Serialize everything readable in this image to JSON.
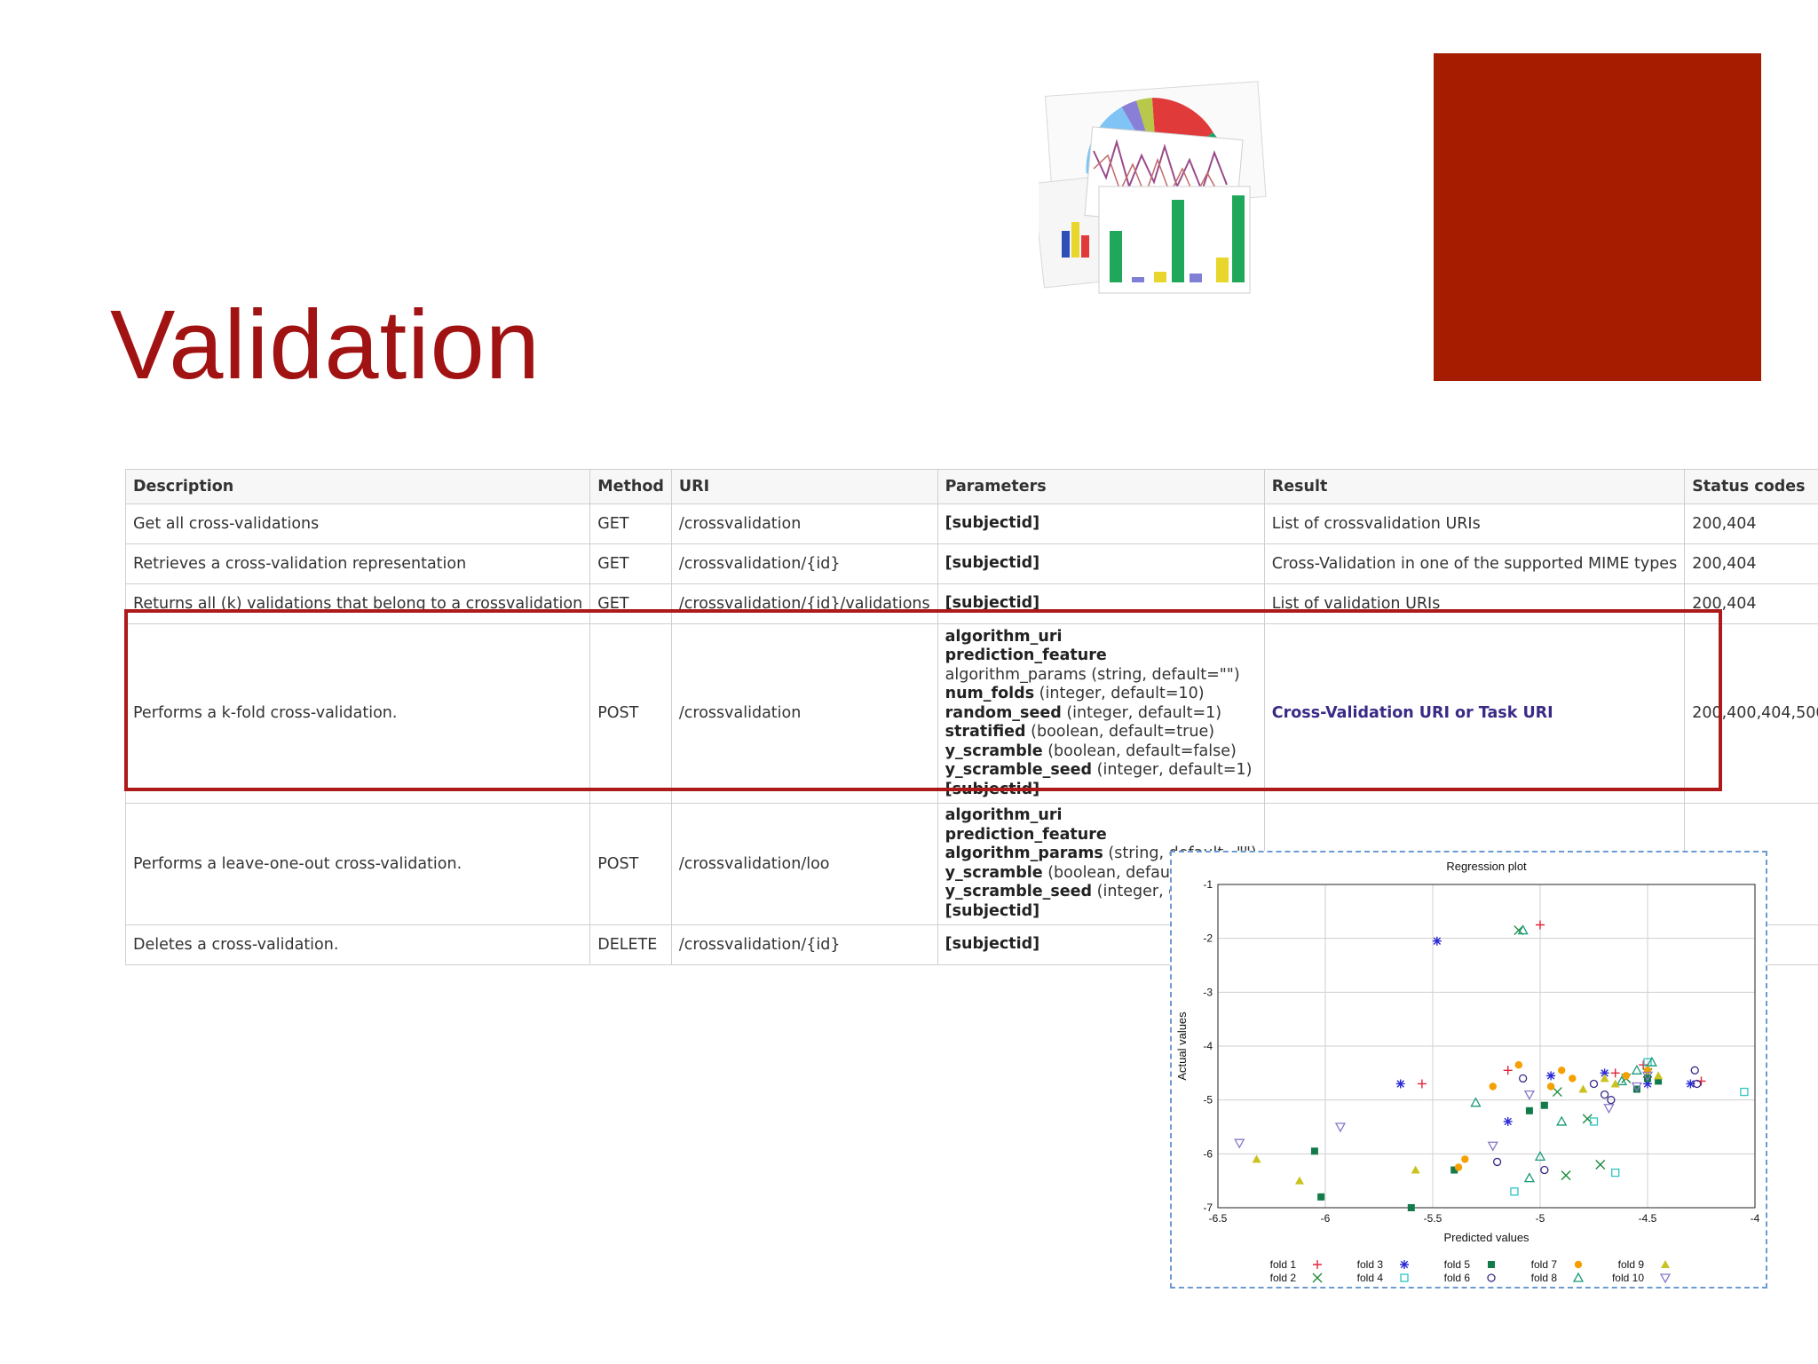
{
  "slide": {
    "title": "Validation",
    "accent_color": "#a61c00",
    "title_color": "#a11313",
    "clipart_icon": "charts-clipart-icon"
  },
  "table": {
    "headers": [
      "Description",
      "Method",
      "URI",
      "Parameters",
      "Result",
      "Status codes"
    ],
    "rows": [
      {
        "description": "Get all cross-validations",
        "method": "GET",
        "uri": "/crossvalidation",
        "params": [
          {
            "name": "[subjectid]",
            "rest": ""
          }
        ],
        "result": "List of crossvalidation URIs",
        "status": "200,404"
      },
      {
        "description": "Retrieves a cross-validation representation",
        "method": "GET",
        "uri": "/crossvalidation/{id}",
        "params": [
          {
            "name": "[subjectid]",
            "rest": ""
          }
        ],
        "result": "Cross-Validation in one of the supported MIME types",
        "status": "200,404"
      },
      {
        "description": "Returns all (k) validations that belong to a crossvalidation",
        "method": "GET",
        "uri": "/crossvalidation/{id}/validations",
        "params": [
          {
            "name": "[subjectid]",
            "rest": ""
          }
        ],
        "result": "List of validation URIs",
        "status": "200,404"
      },
      {
        "description": "Performs a k-fold cross-validation.",
        "method": "POST",
        "uri": "/crossvalidation",
        "params": [
          {
            "name": "algorithm_uri",
            "rest": ""
          },
          {
            "name": "prediction_feature",
            "rest": ""
          },
          {
            "name": "",
            "rest": "algorithm_params (string, default=\"\")"
          },
          {
            "name": "num_folds",
            "rest": " (integer, default=10)"
          },
          {
            "name": "random_seed",
            "rest": " (integer, default=1)"
          },
          {
            "name": "stratified",
            "rest": " (boolean, default=true)"
          },
          {
            "name": "y_scramble",
            "rest": " (boolean, default=false)"
          },
          {
            "name": "y_scramble_seed",
            "rest": " (integer, default=1)"
          },
          {
            "name": "[subjectid]",
            "rest": ""
          }
        ],
        "result": "Cross-Validation URI or Task URI",
        "status": "200,400,404,500"
      },
      {
        "description": "Performs a leave-one-out cross-validation.",
        "method": "POST",
        "uri": "/crossvalidation/loo",
        "params": [
          {
            "name": "algorithm_uri",
            "rest": ""
          },
          {
            "name": "prediction_feature",
            "rest": ""
          },
          {
            "name": "algorithm_params",
            "rest": " (string, default=\"\")"
          },
          {
            "name": "y_scramble",
            "rest": " (boolean, default=false)"
          },
          {
            "name": "y_scramble_seed",
            "rest": " (integer, default=1)"
          },
          {
            "name": "[subjectid]",
            "rest": ""
          }
        ],
        "result": "",
        "status": ""
      },
      {
        "description": "Deletes a cross-validation.",
        "method": "DELETE",
        "uri": "/crossvalidation/{id}",
        "params": [
          {
            "name": "[subjectid]",
            "rest": ""
          }
        ],
        "result": "",
        "status": ""
      }
    ]
  },
  "chart_data": {
    "type": "scatter",
    "title": "Regression plot",
    "xlabel": "Predicted values",
    "ylabel": "Actual values",
    "xlim": [
      -6.5,
      -4
    ],
    "ylim": [
      -7,
      -1
    ],
    "xticks": [
      -6.5,
      -6,
      -5.5,
      -5,
      -4.5,
      -4
    ],
    "yticks": [
      -1,
      -2,
      -3,
      -4,
      -5,
      -6,
      -7
    ],
    "grid": true,
    "legend_position": "bottom",
    "series": [
      {
        "name": "fold 1",
        "marker": "+",
        "color": "#e0263a",
        "points": [
          [
            -5.55,
            -4.7
          ],
          [
            -5.0,
            -1.75
          ],
          [
            -5.15,
            -4.45
          ],
          [
            -4.52,
            -4.35
          ],
          [
            -4.25,
            -4.65
          ],
          [
            -4.65,
            -4.5
          ]
        ]
      },
      {
        "name": "fold 2",
        "marker": "x",
        "color": "#1a8a3a",
        "points": [
          [
            -5.1,
            -1.85
          ],
          [
            -4.92,
            -4.85
          ],
          [
            -4.78,
            -5.35
          ],
          [
            -4.88,
            -6.4
          ],
          [
            -4.72,
            -6.2
          ],
          [
            -4.6,
            -4.6
          ],
          [
            -4.5,
            -4.5
          ]
        ]
      },
      {
        "name": "fold 3",
        "marker": "*",
        "color": "#2b2bd6",
        "points": [
          [
            -5.48,
            -2.05
          ],
          [
            -5.65,
            -4.7
          ],
          [
            -5.15,
            -5.4
          ],
          [
            -4.95,
            -4.55
          ],
          [
            -4.7,
            -4.5
          ],
          [
            -4.5,
            -4.7
          ],
          [
            -4.3,
            -4.7
          ]
        ]
      },
      {
        "name": "fold 4",
        "marker": "square",
        "color": "#2ec4c4",
        "points": [
          [
            -5.12,
            -6.7
          ],
          [
            -4.75,
            -5.4
          ],
          [
            -4.65,
            -6.35
          ],
          [
            -4.05,
            -4.85
          ],
          [
            -4.5,
            -4.3
          ]
        ]
      },
      {
        "name": "fold 5",
        "marker": "filled-square",
        "color": "#137a4a",
        "points": [
          [
            -6.05,
            -5.95
          ],
          [
            -6.02,
            -6.8
          ],
          [
            -5.6,
            -7.0
          ],
          [
            -5.4,
            -6.3
          ],
          [
            -5.05,
            -5.2
          ],
          [
            -4.98,
            -5.1
          ],
          [
            -4.55,
            -4.8
          ],
          [
            -4.5,
            -4.6
          ],
          [
            -4.45,
            -4.65
          ]
        ]
      },
      {
        "name": "fold 6",
        "marker": "circle",
        "color": "#3b2a86",
        "points": [
          [
            -5.2,
            -6.15
          ],
          [
            -5.08,
            -4.6
          ],
          [
            -4.98,
            -6.3
          ],
          [
            -4.75,
            -4.7
          ],
          [
            -4.7,
            -4.9
          ],
          [
            -4.67,
            -5.0
          ],
          [
            -4.28,
            -4.45
          ],
          [
            -4.27,
            -4.7
          ]
        ]
      },
      {
        "name": "fold 7",
        "marker": "filled-circle",
        "color": "#f5a000",
        "points": [
          [
            -5.38,
            -6.25
          ],
          [
            -5.35,
            -6.1
          ],
          [
            -5.22,
            -4.75
          ],
          [
            -5.1,
            -4.35
          ],
          [
            -4.95,
            -4.75
          ],
          [
            -4.9,
            -4.45
          ],
          [
            -4.85,
            -4.6
          ],
          [
            -4.6,
            -4.55
          ],
          [
            -4.5,
            -4.45
          ]
        ]
      },
      {
        "name": "fold 8",
        "marker": "triangle",
        "color": "#1a9a7a",
        "points": [
          [
            -5.08,
            -1.85
          ],
          [
            -5.3,
            -5.05
          ],
          [
            -4.9,
            -5.4
          ],
          [
            -5.0,
            -6.05
          ],
          [
            -5.05,
            -6.45
          ],
          [
            -4.62,
            -4.65
          ],
          [
            -4.55,
            -4.45
          ],
          [
            -4.48,
            -4.3
          ]
        ]
      },
      {
        "name": "fold 9",
        "marker": "filled-triangle",
        "color": "#c9c220",
        "points": [
          [
            -6.32,
            -6.1
          ],
          [
            -6.12,
            -6.5
          ],
          [
            -5.58,
            -6.3
          ],
          [
            -4.8,
            -4.8
          ],
          [
            -4.7,
            -4.6
          ],
          [
            -4.65,
            -4.7
          ],
          [
            -4.45,
            -4.55
          ]
        ]
      },
      {
        "name": "fold 10",
        "marker": "inverted-triangle",
        "color": "#8a78c8",
        "points": [
          [
            -6.4,
            -5.8
          ],
          [
            -5.93,
            -5.5
          ],
          [
            -5.22,
            -5.85
          ],
          [
            -5.05,
            -4.9
          ],
          [
            -4.68,
            -5.15
          ],
          [
            -4.55,
            -4.75
          ],
          [
            -4.5,
            -4.55
          ]
        ]
      }
    ]
  }
}
